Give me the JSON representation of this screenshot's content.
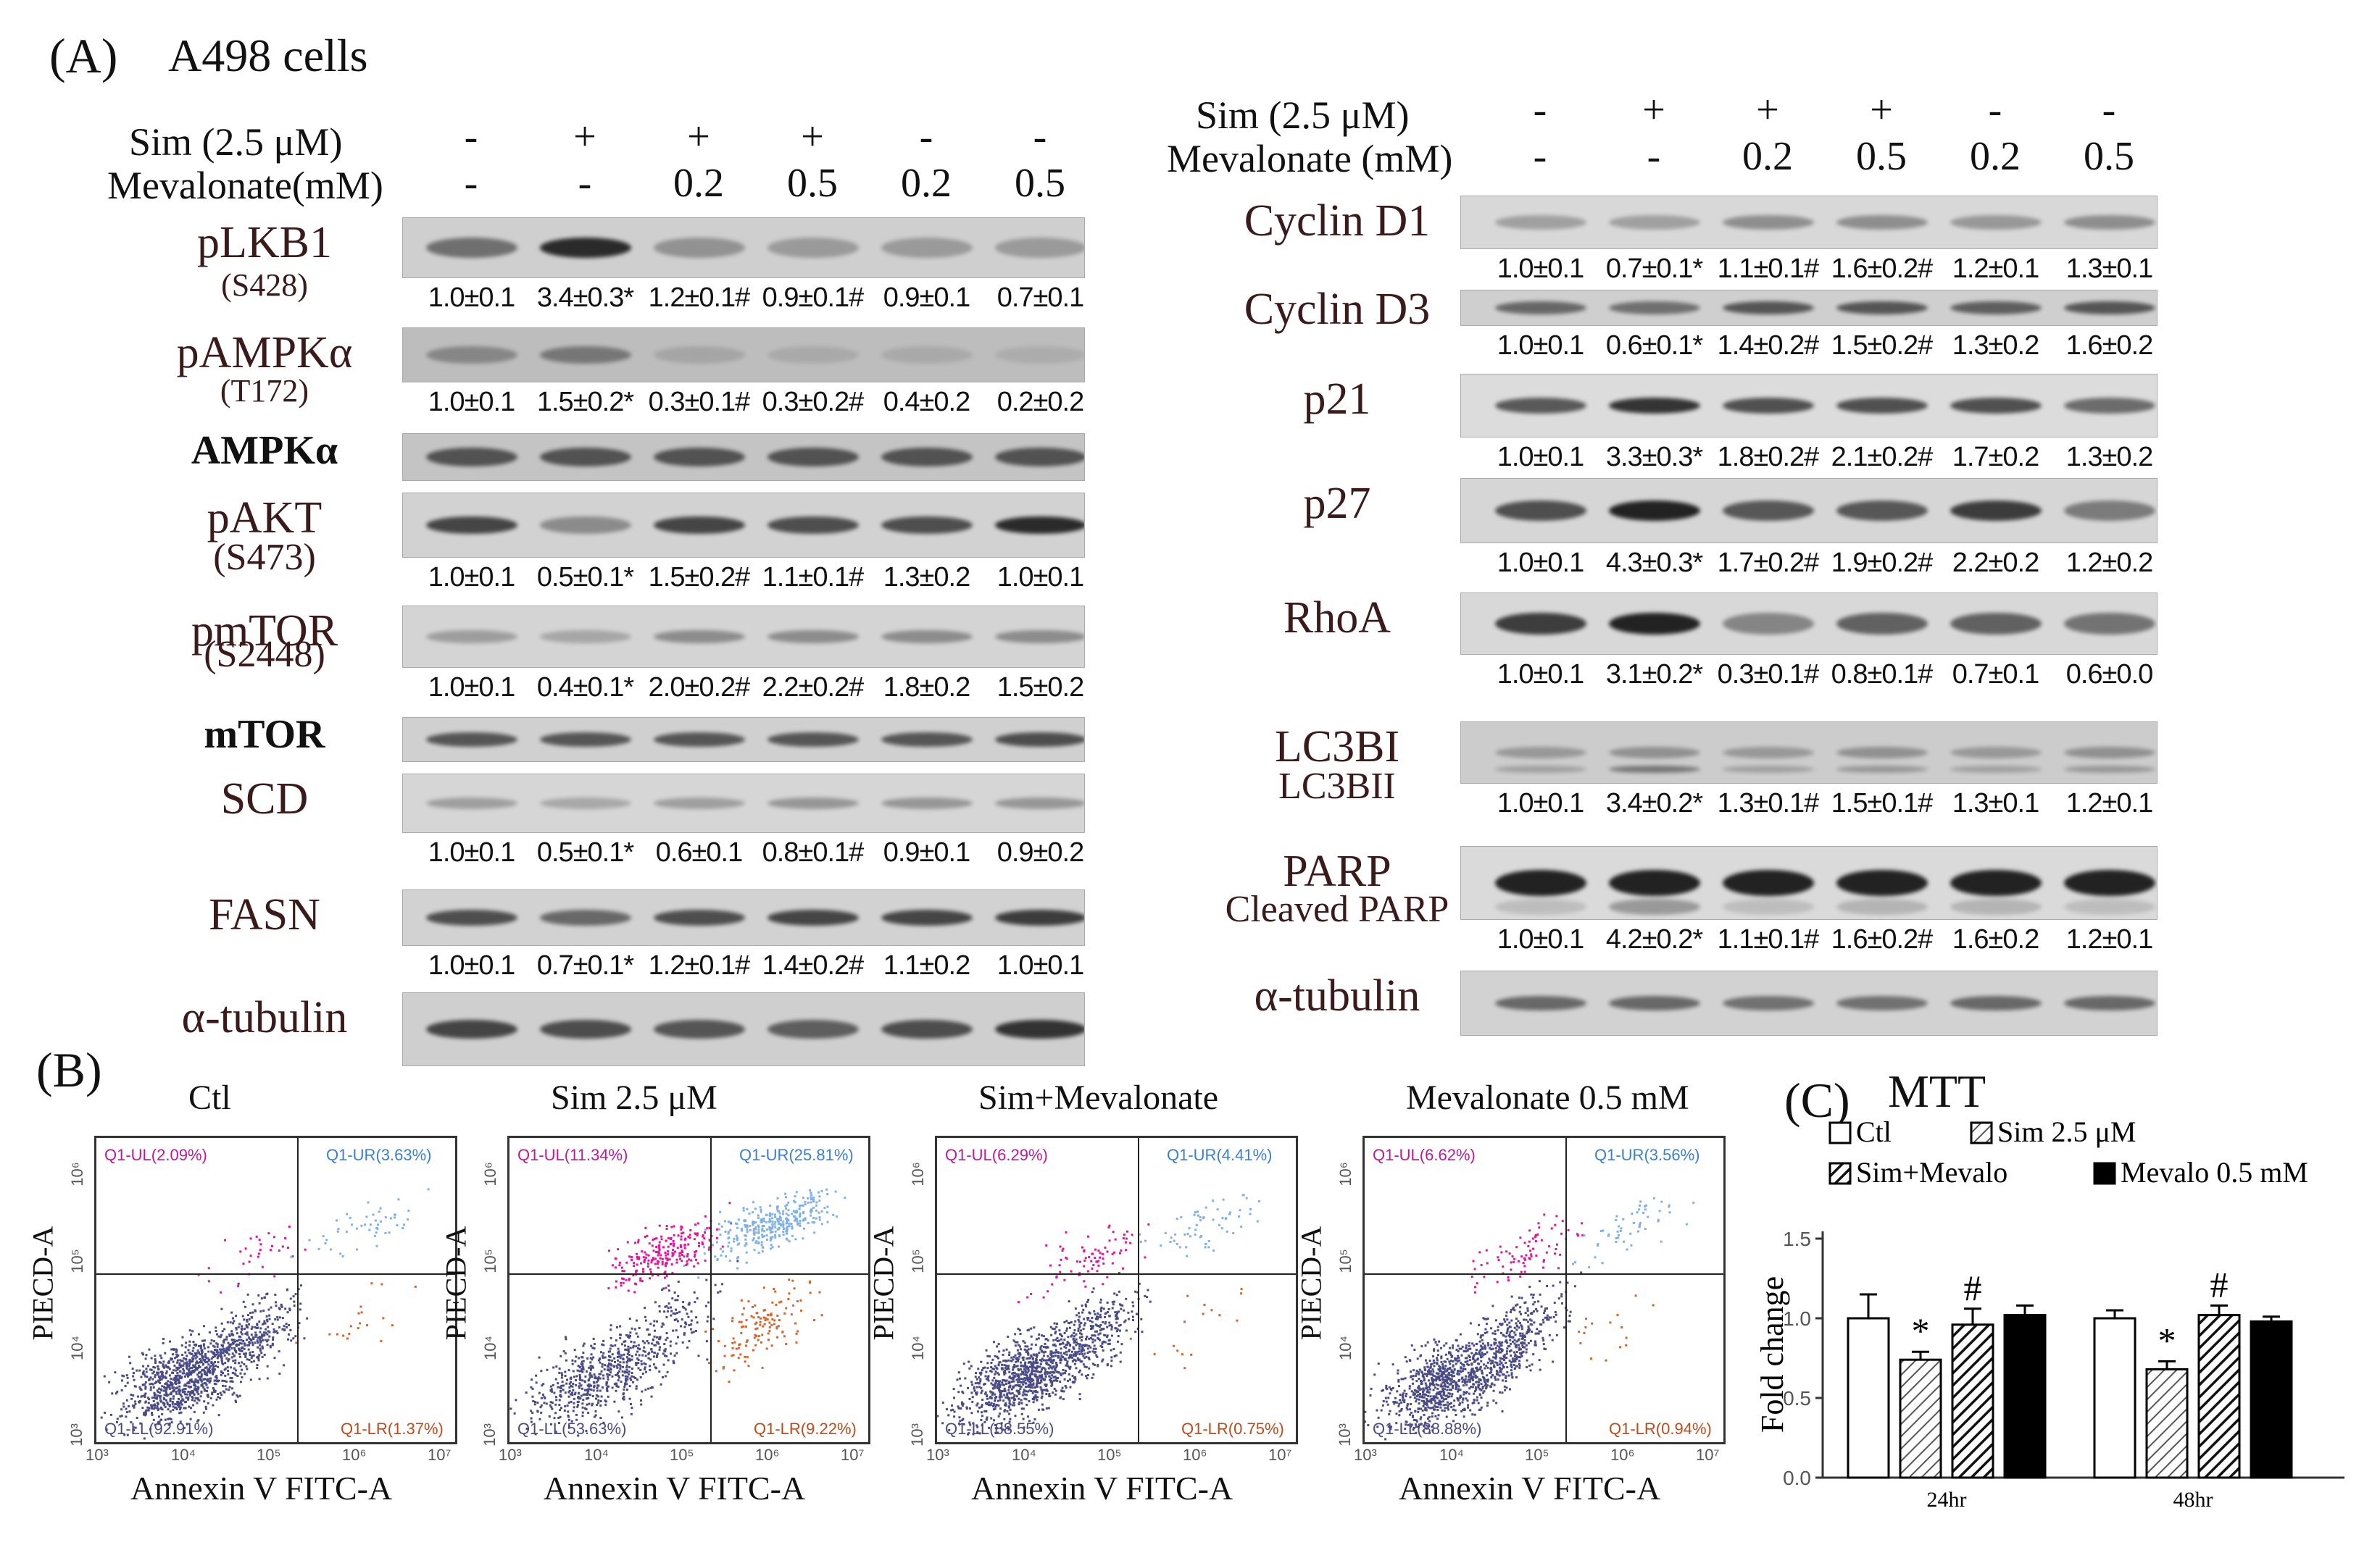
{
  "panelA": {
    "letter": "(A)",
    "title": "A498 cells",
    "left_header": {
      "sim_label": "Sim  (2.5 μM)",
      "mev_label": "Mevalonate(mM)",
      "sim": [
        "-",
        "+",
        "+",
        "+",
        "-",
        "-"
      ],
      "mev": [
        "-",
        "-",
        "0.2",
        "0.5",
        "0.2",
        "0.5"
      ]
    },
    "right_header": {
      "sim_label": "Sim  (2.5 μM)",
      "mev_label": "Mevalonate (mM)",
      "sim": [
        "-",
        "+",
        "+",
        "+",
        "-",
        "-"
      ],
      "mev": [
        "-",
        "-",
        "0.2",
        "0.5",
        "0.2",
        "0.5"
      ]
    },
    "left_blots": [
      {
        "label": "pLKB1",
        "sub": "(S428)",
        "values": [
          "1.0±0.1",
          "3.4±0.3*",
          "1.2±0.1#",
          "0.9±0.1#",
          "0.9±0.1",
          "0.7±0.1"
        ]
      },
      {
        "label": "pAMPKα",
        "sub": "(T172)",
        "values": [
          "1.0±0.1",
          "1.5±0.2*",
          "0.3±0.1#",
          "0.3±0.2#",
          "0.4±0.2",
          "0.2±0.2"
        ]
      },
      {
        "label": "AMPKα",
        "sub": "",
        "values": []
      },
      {
        "label": "pAKT",
        "sub": "(S473)",
        "values": [
          "1.0±0.1",
          "0.5±0.1*",
          "1.5±0.2#",
          "1.1±0.1#",
          "1.3±0.2",
          "1.0±0.1"
        ]
      },
      {
        "label": "pmTOR",
        "sub": "(S2448)",
        "values": [
          "1.0±0.1",
          "0.4±0.1*",
          "2.0±0.2#",
          "2.2±0.2#",
          "1.8±0.2",
          "1.5±0.2"
        ]
      },
      {
        "label": "mTOR",
        "sub": "",
        "values": []
      },
      {
        "label": "SCD",
        "sub": "",
        "values": [
          "1.0±0.1",
          "0.5±0.1*",
          "0.6±0.1",
          "0.8±0.1#",
          "0.9±0.1",
          "0.9±0.2"
        ]
      },
      {
        "label": "FASN",
        "sub": "",
        "values": [
          "1.0±0.1",
          "0.7±0.1*",
          "1.2±0.1#",
          "1.4±0.2#",
          "1.1±0.2",
          "1.0±0.1"
        ]
      },
      {
        "label": "α-tubulin",
        "sub": "",
        "values": []
      }
    ],
    "right_blots": [
      {
        "label": "Cyclin D1",
        "sub": "",
        "values": [
          "1.0±0.1",
          "0.7±0.1*",
          "1.1±0.1#",
          "1.6±0.2#",
          "1.2±0.1",
          "1.3±0.1"
        ]
      },
      {
        "label": "Cyclin D3",
        "sub": "",
        "values": [
          "1.0±0.1",
          "0.6±0.1*",
          "1.4±0.2#",
          "1.5±0.2#",
          "1.3±0.2",
          "1.6±0.2"
        ]
      },
      {
        "label": "p21",
        "sub": "",
        "values": [
          "1.0±0.1",
          "3.3±0.3*",
          "1.8±0.2#",
          "2.1±0.2#",
          "1.7±0.2",
          "1.3±0.2"
        ]
      },
      {
        "label": "p27",
        "sub": "",
        "values": [
          "1.0±0.1",
          "4.3±0.3*",
          "1.7±0.2#",
          "1.9±0.2#",
          "2.2±0.2",
          "1.2±0.2"
        ]
      },
      {
        "label": "RhoA",
        "sub": "",
        "values": [
          "1.0±0.1",
          "3.1±0.2*",
          "0.3±0.1#",
          "0.8±0.1#",
          "0.7±0.1",
          "0.6±0.0"
        ]
      },
      {
        "label": "LC3BI",
        "sub": "LC3BII",
        "values": [
          "1.0±0.1",
          "3.4±0.2*",
          "1.3±0.1#",
          "1.5±0.1#",
          "1.3±0.1",
          "1.2±0.1"
        ]
      },
      {
        "label": "PARP",
        "sub": "Cleaved PARP",
        "values": [
          "1.0±0.1",
          "4.2±0.2*",
          "1.1±0.1#",
          "1.6±0.2#",
          "1.6±0.2",
          "1.2±0.1"
        ]
      },
      {
        "label": "α-tubulin",
        "sub": "",
        "values": []
      }
    ]
  },
  "panelB": {
    "letter": "(B)",
    "xlabel": "Annexin V FITC-A",
    "ylabel": "PIECD-A",
    "x_ticks": [
      "10³",
      "10⁴",
      "10⁵",
      "10⁶",
      "10⁷"
    ],
    "y_ticks": [
      "10³",
      "10⁴",
      "10⁵",
      "10⁶"
    ],
    "plots": [
      {
        "title": "Ctl",
        "ul": "Q1-UL(2.09%)",
        "ur": "Q1-UR(3.63%)",
        "ll": "Q1-LL(92.91%)",
        "lr": "Q1-LR(1.37%)"
      },
      {
        "title": "Sim 2.5 μM",
        "ul": "Q1-UL(11.34%)",
        "ur": "Q1-UR(25.81%)",
        "ll": "Q1-LL(53.63%)",
        "lr": "Q1-LR(9.22%)"
      },
      {
        "title": "Sim+Mevalonate",
        "ul": "Q1-UL(6.29%)",
        "ur": "Q1-UR(4.41%)",
        "ll": "Q1-LL(88.55%)",
        "lr": "Q1-LR(0.75%)"
      },
      {
        "title": "Mevalonate 0.5 mM",
        "ul": "Q1-UL(6.62%)",
        "ur": "Q1-UR(3.56%)",
        "ll": "Q1-LL(88.88%)",
        "lr": "Q1-LR(0.94%)"
      }
    ]
  },
  "panelC": {
    "letter": "(C)",
    "title": "MTT"
  },
  "chart_data": {
    "type": "bar",
    "title": "MTT",
    "xlabel": "",
    "ylabel": "Fold change",
    "ylim": [
      0.0,
      1.5
    ],
    "y_ticks": [
      "0.0",
      "0.5",
      "1.0",
      "1.5"
    ],
    "categories": [
      "24hr",
      "48hr"
    ],
    "series": [
      {
        "name": "Ctl",
        "values": [
          1.0,
          1.0
        ],
        "errors": [
          0.15,
          0.05
        ],
        "marks": [
          "",
          ""
        ],
        "fill": "#ffffff"
      },
      {
        "name": "Sim 2.5 μM",
        "values": [
          0.74,
          0.68
        ],
        "errors": [
          0.05,
          0.05
        ],
        "marks": [
          "*",
          "*"
        ],
        "fill": "hatch-light"
      },
      {
        "name": "Sim+Mevalo",
        "values": [
          0.96,
          1.02
        ],
        "errors": [
          0.1,
          0.06
        ],
        "marks": [
          "#",
          "#"
        ],
        "fill": "hatch-dark"
      },
      {
        "name": "Mevalo 0.5 mM",
        "values": [
          1.02,
          0.98
        ],
        "errors": [
          0.06,
          0.03
        ],
        "marks": [
          "",
          ""
        ],
        "fill": "#000000"
      }
    ]
  }
}
